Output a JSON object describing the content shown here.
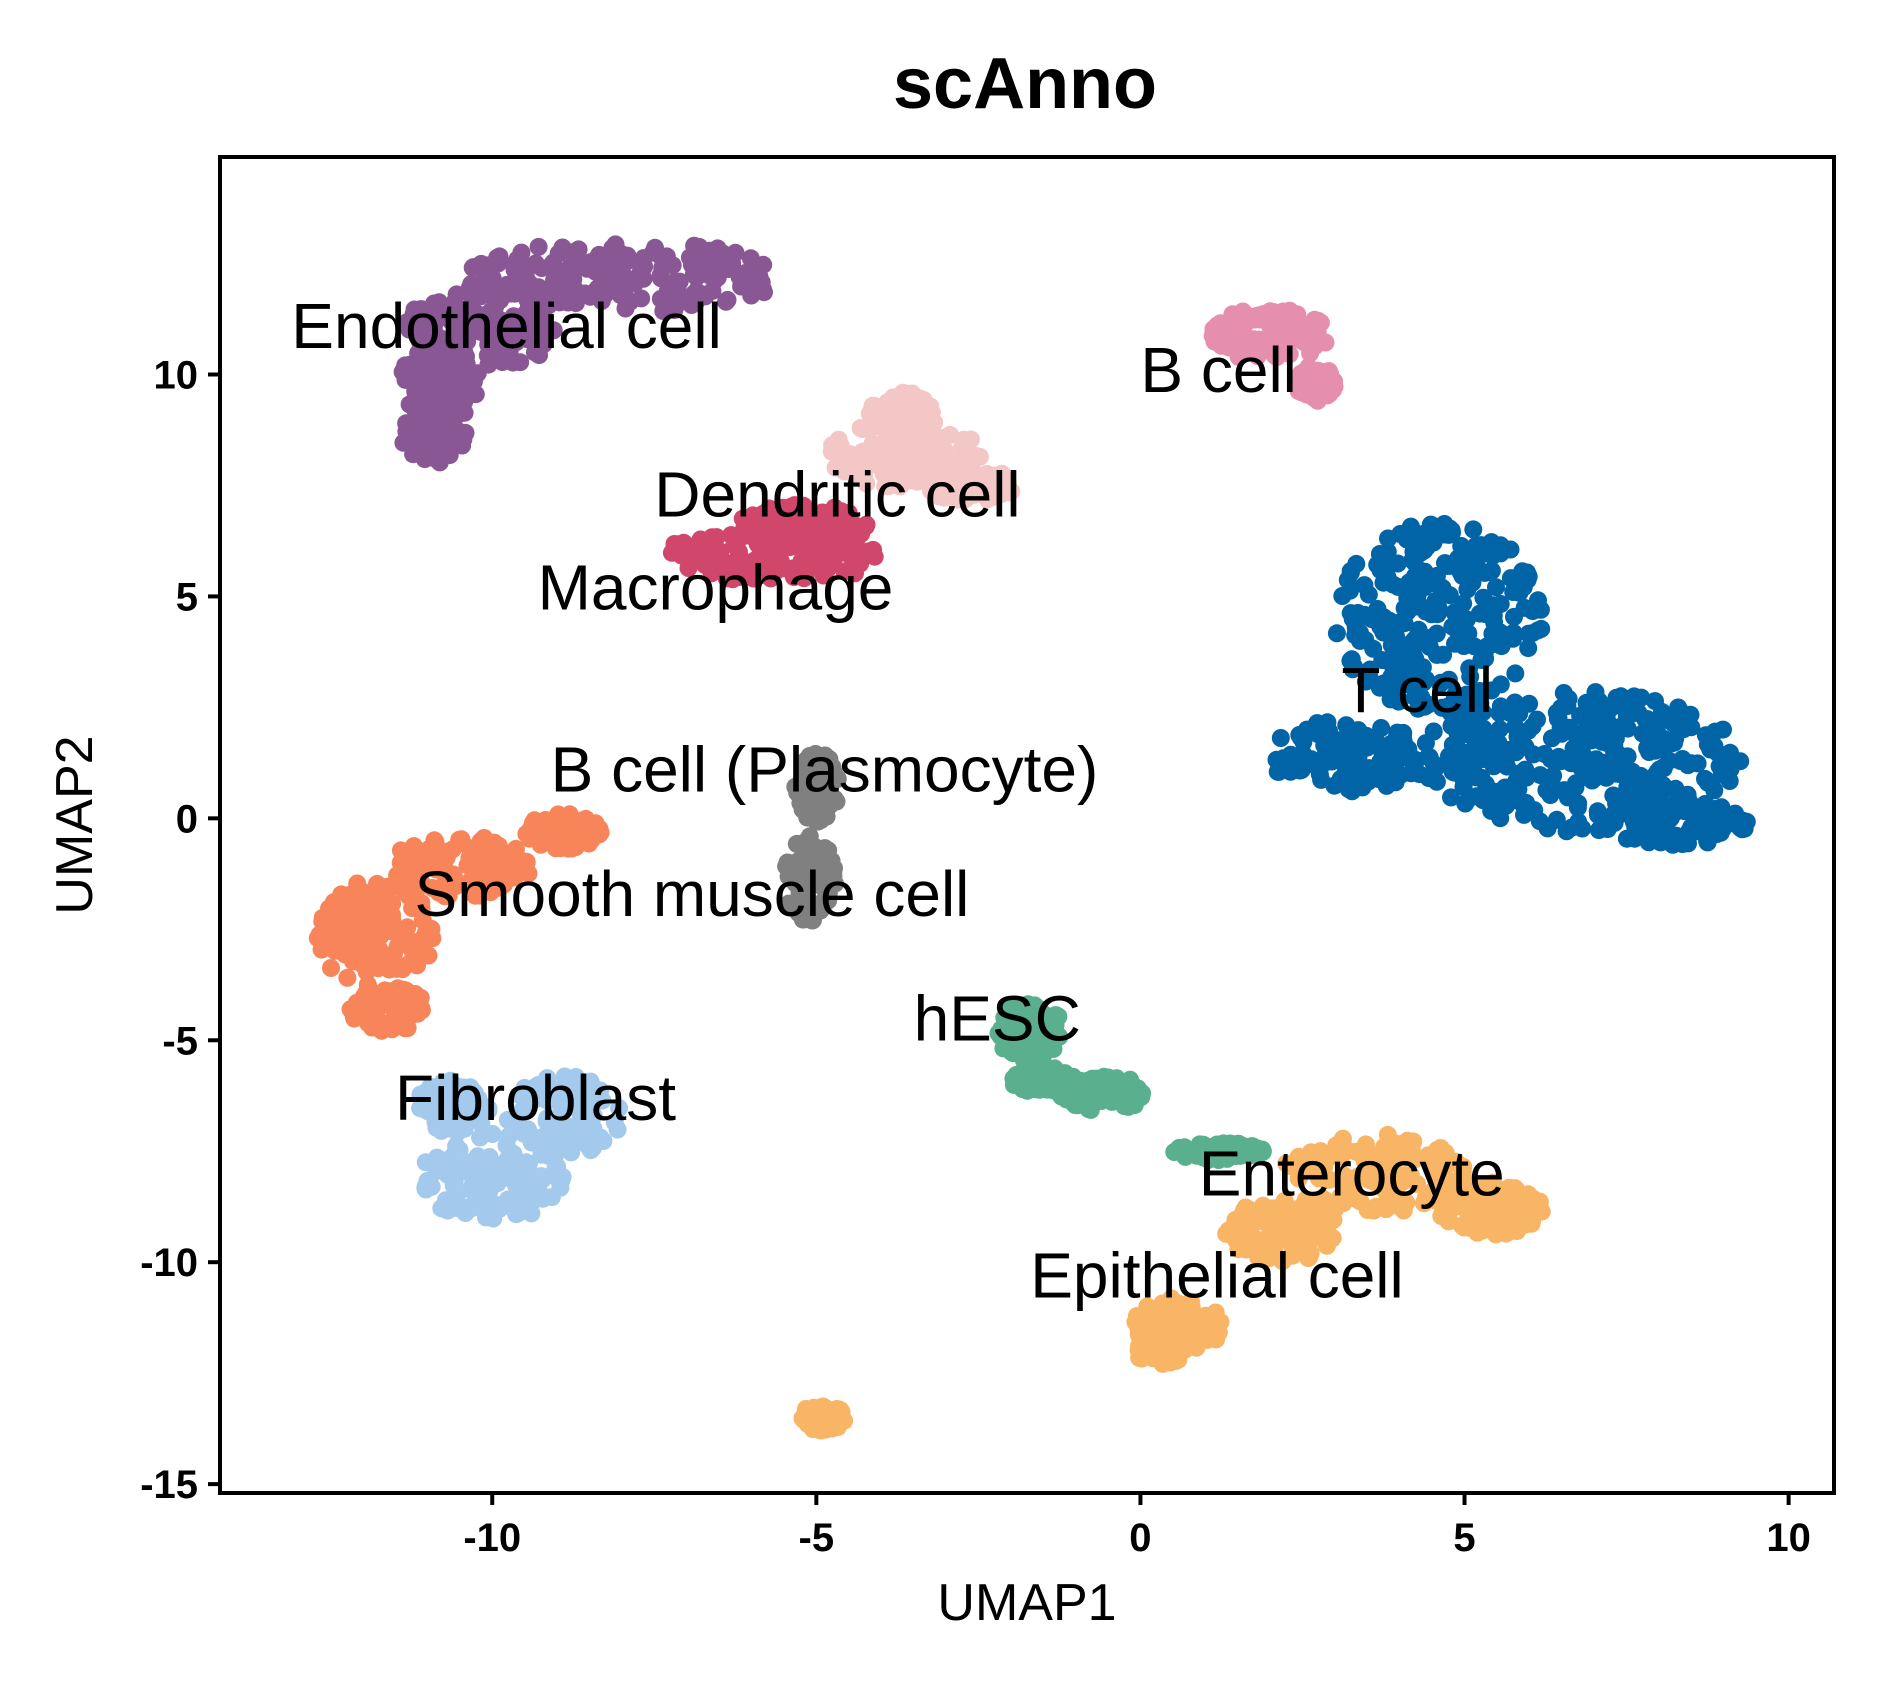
{
  "chart_data": {
    "type": "scatter",
    "title": "scAnno",
    "xlabel": "UMAP1",
    "ylabel": "UMAP2",
    "xlim": [
      -14.2,
      10.7
    ],
    "ylim": [
      -15.2,
      14.9
    ],
    "xticks": [
      {
        "value": -10,
        "label": "-10"
      },
      {
        "value": -5,
        "label": "-5"
      },
      {
        "value": 0,
        "label": "0"
      },
      {
        "value": 5,
        "label": "5"
      },
      {
        "value": 10,
        "label": "10"
      }
    ],
    "yticks": [
      {
        "value": -15,
        "label": "-15"
      },
      {
        "value": -10,
        "label": "-10"
      },
      {
        "value": -5,
        "label": "-5"
      },
      {
        "value": 0,
        "label": "0"
      },
      {
        "value": 5,
        "label": "5"
      },
      {
        "value": 10,
        "label": "10"
      }
    ],
    "grid": false,
    "legend": "none",
    "clusters": [
      {
        "name": "Endothelial cell",
        "color": "#8a5795",
        "label_x": -13.1,
        "label_y": 10.6,
        "blobs": [
          [
            -8.0,
            12.2,
            2.5,
            0.8
          ],
          [
            -10.2,
            11.0,
            1.2,
            0.9
          ],
          [
            -10.8,
            9.9,
            0.6,
            1.0
          ],
          [
            -10.9,
            8.6,
            0.5,
            0.6
          ]
        ]
      },
      {
        "name": "B cell",
        "color": "#e58ead",
        "label_x": 0.0,
        "label_y": 9.6,
        "blobs": [
          [
            2.0,
            10.9,
            0.9,
            0.6
          ],
          [
            2.7,
            9.8,
            0.3,
            0.4
          ]
        ]
      },
      {
        "name": "Dendritic cell",
        "color": "#f3c7c6",
        "label_x": -7.5,
        "label_y": 6.8,
        "blobs": [
          [
            -3.6,
            8.2,
            1.2,
            0.8
          ],
          [
            -2.7,
            7.5,
            0.8,
            0.4
          ],
          [
            -3.7,
            9.2,
            0.5,
            0.4
          ]
        ]
      },
      {
        "name": "Macrophage",
        "color": "#d1476b",
        "label_x": -9.3,
        "label_y": 4.7,
        "blobs": [
          [
            -5.7,
            5.9,
            1.7,
            0.6
          ],
          [
            -5.2,
            6.6,
            1.0,
            0.5
          ]
        ]
      },
      {
        "name": "T cell",
        "color": "#0064a6",
        "label_x": 3.1,
        "label_y": 2.4,
        "blobs": [
          [
            4.6,
            4.5,
            1.6,
            2.2
          ],
          [
            6.8,
            1.3,
            2.5,
            1.6
          ],
          [
            3.2,
            1.4,
            1.3,
            0.8
          ],
          [
            8.2,
            -0.1,
            1.2,
            0.5
          ]
        ]
      },
      {
        "name": "B cell (Plasmocyte)",
        "color": "#808080",
        "label_x": -9.1,
        "label_y": 0.6,
        "blobs": [
          [
            -5.0,
            0.7,
            0.35,
            0.8
          ],
          [
            -5.1,
            -1.4,
            0.4,
            1.0
          ]
        ]
      },
      {
        "name": "Smooth muscle cell",
        "color": "#f8845a",
        "label_x": -11.2,
        "label_y": -2.2,
        "blobs": [
          [
            -11.8,
            -2.6,
            0.9,
            1.2
          ],
          [
            -10.5,
            -1.1,
            1.1,
            0.7
          ],
          [
            -8.9,
            -0.3,
            0.6,
            0.4
          ],
          [
            -11.6,
            -4.3,
            0.6,
            0.5
          ]
        ]
      },
      {
        "name": "hESC",
        "color": "#5ab08e",
        "label_x": -3.5,
        "label_y": -5.0,
        "blobs": [
          [
            -1.7,
            -4.8,
            0.5,
            0.7
          ],
          [
            -0.6,
            -6.2,
            0.7,
            0.4
          ],
          [
            1.2,
            -7.5,
            0.7,
            0.2
          ],
          [
            -1.5,
            -5.9,
            0.5,
            0.3
          ]
        ]
      },
      {
        "name": "Fibroblast",
        "color": "#a3caec",
        "label_x": -11.5,
        "label_y": -6.8,
        "blobs": [
          [
            -10.0,
            -8.1,
            1.1,
            1.0
          ],
          [
            -8.9,
            -6.7,
            0.9,
            0.9
          ],
          [
            -10.6,
            -6.5,
            0.6,
            0.6
          ]
        ]
      },
      {
        "name": "Enterocyte",
        "color": "#f8b566",
        "label_x": 0.9,
        "label_y": -8.5,
        "blobs": [
          [
            3.6,
            -8.0,
            1.4,
            0.9
          ],
          [
            5.4,
            -8.8,
            0.8,
            0.6
          ],
          [
            2.2,
            -9.3,
            0.9,
            0.7
          ]
        ]
      },
      {
        "name": "Epithelial cell",
        "color": "#f8b566",
        "label_x": -1.7,
        "label_y": -10.8,
        "blobs": [
          [
            0.6,
            -11.4,
            0.7,
            0.6
          ],
          [
            -4.9,
            -13.5,
            0.35,
            0.3
          ],
          [
            0.3,
            -12.0,
            0.4,
            0.3
          ]
        ]
      }
    ]
  }
}
